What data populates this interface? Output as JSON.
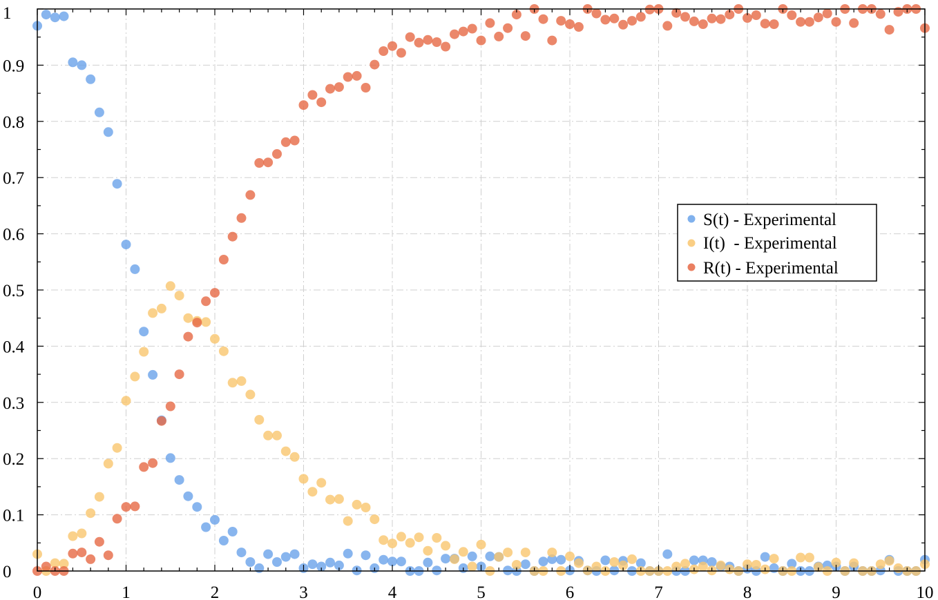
{
  "chart_data": {
    "type": "scatter",
    "title": "",
    "xlabel": "",
    "ylabel": "",
    "xlim": [
      0,
      10
    ],
    "ylim": [
      0,
      1
    ],
    "x_ticks": [
      "0",
      "1",
      "2",
      "3",
      "4",
      "5",
      "6",
      "7",
      "8",
      "9",
      "10"
    ],
    "y_ticks": [
      "0",
      "0.1",
      "0.2",
      "0.3",
      "0.4",
      "0.5",
      "0.6",
      "0.7",
      "0.8",
      "0.9",
      "1"
    ],
    "grid": true,
    "legend_position": "right-middle",
    "series": [
      {
        "name": "S(t) - Experimental",
        "color": "#6aa3ea",
        "points": [
          [
            0,
            0.97
          ],
          [
            0.1,
            0.99
          ],
          [
            0.2,
            0.985
          ],
          [
            0.3,
            0.987
          ],
          [
            0.4,
            0.905
          ],
          [
            0.5,
            0.9
          ],
          [
            0.6,
            0.875
          ],
          [
            0.7,
            0.816
          ],
          [
            0.8,
            0.781
          ],
          [
            0.9,
            0.689
          ],
          [
            1.0,
            0.581
          ],
          [
            1.1,
            0.537
          ],
          [
            1.2,
            0.426
          ],
          [
            1.3,
            0.349
          ],
          [
            1.4,
            0.268
          ],
          [
            1.5,
            0.201
          ],
          [
            1.6,
            0.162
          ],
          [
            1.7,
            0.133
          ],
          [
            1.8,
            0.114
          ],
          [
            1.9,
            0.078
          ],
          [
            2.0,
            0.091
          ],
          [
            2.1,
            0.054
          ],
          [
            2.2,
            0.07
          ],
          [
            2.3,
            0.033
          ],
          [
            2.4,
            0.016
          ],
          [
            2.5,
            0.005
          ],
          [
            2.6,
            0.03
          ],
          [
            2.7,
            0.016
          ],
          [
            2.8,
            0.025
          ],
          [
            2.9,
            0.03
          ],
          [
            3.0,
            0.005
          ],
          [
            3.1,
            0.012
          ],
          [
            3.2,
            0.008
          ],
          [
            3.3,
            0.015
          ],
          [
            3.4,
            0.01
          ],
          [
            3.5,
            0.031
          ],
          [
            3.6,
            0.001
          ],
          [
            3.7,
            0.028
          ],
          [
            3.8,
            0.005
          ],
          [
            3.9,
            0.02
          ],
          [
            4.0,
            0.017
          ],
          [
            4.1,
            0.017
          ],
          [
            4.2,
            0.0
          ],
          [
            4.3,
            0.0
          ],
          [
            4.4,
            0.015
          ],
          [
            4.5,
            0.001
          ],
          [
            4.6,
            0.022
          ],
          [
            4.7,
            0.022
          ],
          [
            4.8,
            0.005
          ],
          [
            4.9,
            0.026
          ],
          [
            5.0,
            0.008
          ],
          [
            5.1,
            0.026
          ],
          [
            5.2,
            0.025
          ],
          [
            5.3,
            0.001
          ],
          [
            5.4,
            0.0
          ],
          [
            5.5,
            0.012
          ],
          [
            5.6,
            0.0
          ],
          [
            5.7,
            0.017
          ],
          [
            5.8,
            0.021
          ],
          [
            5.9,
            0.02
          ],
          [
            6.0,
            0.001
          ],
          [
            6.1,
            0.018
          ],
          [
            6.2,
            0.001
          ],
          [
            6.3,
            0.0
          ],
          [
            6.4,
            0.019
          ],
          [
            6.5,
            0.001
          ],
          [
            6.6,
            0.018
          ],
          [
            6.7,
            0.0
          ],
          [
            6.8,
            0.014
          ],
          [
            6.9,
            0.0
          ],
          [
            7.0,
            0.0
          ],
          [
            7.1,
            0.03
          ],
          [
            7.2,
            0.0
          ],
          [
            7.3,
            0.0
          ],
          [
            7.4,
            0.019
          ],
          [
            7.5,
            0.019
          ],
          [
            7.6,
            0.016
          ],
          [
            7.7,
            0.008
          ],
          [
            7.8,
            0.008
          ],
          [
            7.9,
            0.0
          ],
          [
            8.0,
            0.004
          ],
          [
            8.1,
            0.0
          ],
          [
            8.2,
            0.025
          ],
          [
            8.3,
            0.005
          ],
          [
            8.4,
            0.0
          ],
          [
            8.5,
            0.013
          ],
          [
            8.6,
            0.0
          ],
          [
            8.7,
            0.0
          ],
          [
            8.8,
            0.008
          ],
          [
            8.9,
            0.01
          ],
          [
            9.0,
            0.008
          ],
          [
            9.1,
            0.0
          ],
          [
            9.2,
            0.008
          ],
          [
            9.3,
            0.0
          ],
          [
            9.4,
            0.0
          ],
          [
            9.5,
            0.001
          ],
          [
            9.6,
            0.02
          ],
          [
            9.7,
            0.0
          ],
          [
            9.8,
            0.0
          ],
          [
            9.9,
            0.0
          ],
          [
            10.0,
            0.02
          ]
        ]
      },
      {
        "name": "I(t)  - Experimental",
        "color": "#f9c56e",
        "points": [
          [
            0,
            0.03
          ],
          [
            0.1,
            0.0
          ],
          [
            0.2,
            0.014
          ],
          [
            0.3,
            0.013
          ],
          [
            0.4,
            0.062
          ],
          [
            0.5,
            0.067
          ],
          [
            0.6,
            0.103
          ],
          [
            0.7,
            0.132
          ],
          [
            0.8,
            0.191
          ],
          [
            0.9,
            0.219
          ],
          [
            1.0,
            0.303
          ],
          [
            1.1,
            0.346
          ],
          [
            1.2,
            0.39
          ],
          [
            1.3,
            0.459
          ],
          [
            1.4,
            0.467
          ],
          [
            1.5,
            0.507
          ],
          [
            1.6,
            0.49
          ],
          [
            1.7,
            0.45
          ],
          [
            1.8,
            0.445
          ],
          [
            1.9,
            0.443
          ],
          [
            2.0,
            0.413
          ],
          [
            2.1,
            0.391
          ],
          [
            2.2,
            0.335
          ],
          [
            2.3,
            0.338
          ],
          [
            2.4,
            0.314
          ],
          [
            2.5,
            0.269
          ],
          [
            2.6,
            0.241
          ],
          [
            2.7,
            0.241
          ],
          [
            2.8,
            0.213
          ],
          [
            2.9,
            0.203
          ],
          [
            3.0,
            0.164
          ],
          [
            3.1,
            0.141
          ],
          [
            3.2,
            0.157
          ],
          [
            3.3,
            0.127
          ],
          [
            3.4,
            0.128
          ],
          [
            3.5,
            0.089
          ],
          [
            3.6,
            0.118
          ],
          [
            3.7,
            0.113
          ],
          [
            3.8,
            0.092
          ],
          [
            3.9,
            0.055
          ],
          [
            4.0,
            0.049
          ],
          [
            4.1,
            0.061
          ],
          [
            4.2,
            0.05
          ],
          [
            4.3,
            0.06
          ],
          [
            4.4,
            0.036
          ],
          [
            4.5,
            0.059
          ],
          [
            4.6,
            0.045
          ],
          [
            4.7,
            0.021
          ],
          [
            4.8,
            0.034
          ],
          [
            4.9,
            0.008
          ],
          [
            5.0,
            0.047
          ],
          [
            5.1,
            0.0
          ],
          [
            5.2,
            0.025
          ],
          [
            5.3,
            0.033
          ],
          [
            5.4,
            0.011
          ],
          [
            5.5,
            0.033
          ],
          [
            5.6,
            0.0
          ],
          [
            5.7,
            0.0
          ],
          [
            5.8,
            0.033
          ],
          [
            5.9,
            0.0
          ],
          [
            6.0,
            0.026
          ],
          [
            6.1,
            0.014
          ],
          [
            6.2,
            0.001
          ],
          [
            6.3,
            0.008
          ],
          [
            6.4,
            0.0
          ],
          [
            6.5,
            0.016
          ],
          [
            6.6,
            0.01
          ],
          [
            6.7,
            0.021
          ],
          [
            6.8,
            0.0
          ],
          [
            6.9,
            0.0
          ],
          [
            7.0,
            0.0
          ],
          [
            7.1,
            0.0
          ],
          [
            7.2,
            0.008
          ],
          [
            7.3,
            0.013
          ],
          [
            7.4,
            0.003
          ],
          [
            7.5,
            0.008
          ],
          [
            7.6,
            0.001
          ],
          [
            7.7,
            0.01
          ],
          [
            7.8,
            0.003
          ],
          [
            7.9,
            0.0
          ],
          [
            8.0,
            0.012
          ],
          [
            8.1,
            0.011
          ],
          [
            8.2,
            0.003
          ],
          [
            8.3,
            0.022
          ],
          [
            8.4,
            0.0
          ],
          [
            8.5,
            0.0
          ],
          [
            8.6,
            0.024
          ],
          [
            8.7,
            0.024
          ],
          [
            8.8,
            0.007
          ],
          [
            8.9,
            0.0
          ],
          [
            9.0,
            0.015
          ],
          [
            9.1,
            0.0
          ],
          [
            9.2,
            0.014
          ],
          [
            9.3,
            0.0
          ],
          [
            9.4,
            0.0
          ],
          [
            9.5,
            0.012
          ],
          [
            9.6,
            0.018
          ],
          [
            9.7,
            0.005
          ],
          [
            9.8,
            0.0
          ],
          [
            9.9,
            0.0
          ],
          [
            10.0,
            0.012
          ]
        ]
      },
      {
        "name": "R(t) - Experimental",
        "color": "#e66945",
        "points": [
          [
            0,
            0.0
          ],
          [
            0.1,
            0.008
          ],
          [
            0.2,
            0.0
          ],
          [
            0.3,
            0.0
          ],
          [
            0.4,
            0.031
          ],
          [
            0.5,
            0.033
          ],
          [
            0.6,
            0.021
          ],
          [
            0.7,
            0.052
          ],
          [
            0.8,
            0.028
          ],
          [
            0.9,
            0.093
          ],
          [
            1.0,
            0.114
          ],
          [
            1.1,
            0.115
          ],
          [
            1.2,
            0.185
          ],
          [
            1.3,
            0.192
          ],
          [
            1.4,
            0.267
          ],
          [
            1.5,
            0.293
          ],
          [
            1.6,
            0.35
          ],
          [
            1.7,
            0.417
          ],
          [
            1.8,
            0.442
          ],
          [
            1.9,
            0.48
          ],
          [
            2.0,
            0.495
          ],
          [
            2.1,
            0.554
          ],
          [
            2.2,
            0.595
          ],
          [
            2.3,
            0.628
          ],
          [
            2.4,
            0.669
          ],
          [
            2.5,
            0.726
          ],
          [
            2.6,
            0.727
          ],
          [
            2.7,
            0.742
          ],
          [
            2.8,
            0.763
          ],
          [
            2.9,
            0.766
          ],
          [
            3.0,
            0.829
          ],
          [
            3.1,
            0.847
          ],
          [
            3.2,
            0.834
          ],
          [
            3.3,
            0.858
          ],
          [
            3.4,
            0.861
          ],
          [
            3.5,
            0.879
          ],
          [
            3.6,
            0.881
          ],
          [
            3.7,
            0.86
          ],
          [
            3.8,
            0.901
          ],
          [
            3.9,
            0.925
          ],
          [
            4.0,
            0.934
          ],
          [
            4.1,
            0.922
          ],
          [
            4.2,
            0.95
          ],
          [
            4.3,
            0.94
          ],
          [
            4.4,
            0.945
          ],
          [
            4.5,
            0.941
          ],
          [
            4.6,
            0.933
          ],
          [
            4.7,
            0.955
          ],
          [
            4.8,
            0.96
          ],
          [
            4.9,
            0.965
          ],
          [
            5.0,
            0.944
          ],
          [
            5.1,
            0.975
          ],
          [
            5.2,
            0.951
          ],
          [
            5.3,
            0.966
          ],
          [
            5.4,
            0.99
          ],
          [
            5.5,
            0.952
          ],
          [
            5.6,
            1.0
          ],
          [
            5.7,
            0.982
          ],
          [
            5.8,
            0.944
          ],
          [
            5.9,
            0.979
          ],
          [
            6.0,
            0.973
          ],
          [
            6.1,
            0.968
          ],
          [
            6.2,
            1.0
          ],
          [
            6.3,
            0.992
          ],
          [
            6.4,
            0.981
          ],
          [
            6.5,
            0.983
          ],
          [
            6.6,
            0.972
          ],
          [
            6.7,
            0.979
          ],
          [
            6.8,
            0.986
          ],
          [
            6.9,
            0.999
          ],
          [
            7.0,
            1.0
          ],
          [
            7.1,
            0.97
          ],
          [
            7.2,
            0.993
          ],
          [
            7.3,
            0.986
          ],
          [
            7.4,
            0.978
          ],
          [
            7.5,
            0.973
          ],
          [
            7.6,
            0.983
          ],
          [
            7.7,
            0.982
          ],
          [
            7.8,
            0.99
          ],
          [
            7.9,
            1.0
          ],
          [
            8.0,
            0.984
          ],
          [
            8.1,
            0.989
          ],
          [
            8.2,
            0.974
          ],
          [
            8.3,
            0.973
          ],
          [
            8.4,
            1.0
          ],
          [
            8.5,
            0.989
          ],
          [
            8.6,
            0.977
          ],
          [
            8.7,
            0.977
          ],
          [
            8.8,
            0.985
          ],
          [
            8.9,
            0.992
          ],
          [
            9.0,
            0.977
          ],
          [
            9.1,
            1.0
          ],
          [
            9.2,
            0.975
          ],
          [
            9.3,
            1.0
          ],
          [
            9.4,
            1.0
          ],
          [
            9.5,
            0.991
          ],
          [
            9.6,
            0.963
          ],
          [
            9.7,
            0.995
          ],
          [
            9.8,
            1.0
          ],
          [
            9.9,
            1.0
          ],
          [
            10.0,
            0.966
          ]
        ]
      }
    ]
  }
}
